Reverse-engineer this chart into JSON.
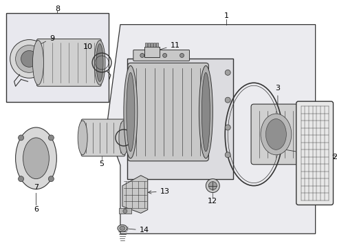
{
  "bg_color": "#ffffff",
  "line_color": "#333333",
  "gray_fill": "#e0e0e0",
  "dark_gray": "#aaaaaa",
  "light_gray": "#f0f0f0",
  "box_fill": "#e8e8ee",
  "main_poly_fill": "#ebebf0",
  "label_fs": 8.0,
  "lw": 0.7
}
